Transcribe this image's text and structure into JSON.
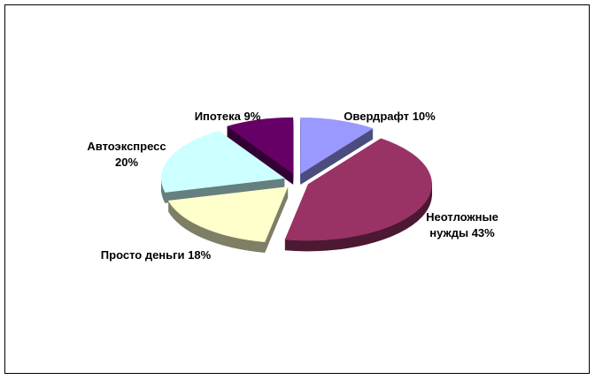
{
  "chart_data": {
    "type": "pie3d",
    "categories": [
      "Овердрафт",
      "Неотложные нужды",
      "Просто деньги",
      "Автоэкспресс",
      "Ипотека"
    ],
    "values": [
      10,
      43,
      18,
      20,
      9
    ],
    "value_labels": [
      "10%",
      "43%",
      "18%",
      "20%",
      "9%"
    ],
    "colors": [
      "#9999ff",
      "#993366",
      "#ffffcc",
      "#ccffff",
      "#660066"
    ]
  }
}
